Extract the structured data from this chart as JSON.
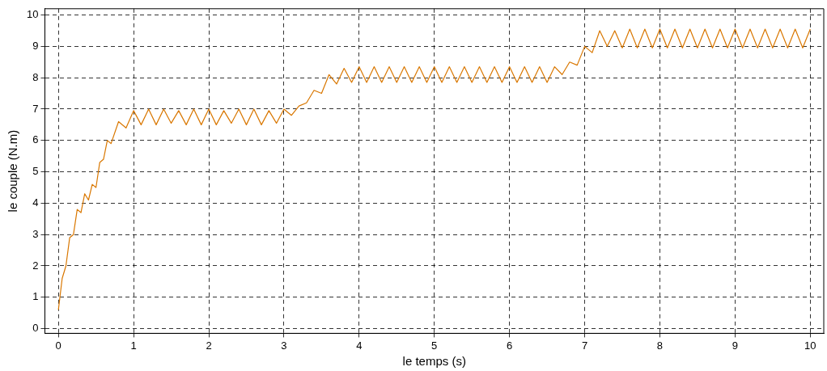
{
  "chart_data": {
    "type": "line",
    "xlabel": "le temps (s)",
    "ylabel": "le couple (N.m)",
    "xlim": [
      -0.18,
      10.18
    ],
    "ylim": [
      -0.15,
      10.2
    ],
    "xticks": [
      0,
      1,
      2,
      3,
      4,
      5,
      6,
      7,
      8,
      9,
      10
    ],
    "yticks": [
      0,
      1,
      2,
      3,
      4,
      5,
      6,
      7,
      8,
      9,
      10
    ],
    "grid": true,
    "line_style": "solid",
    "marker": "none",
    "series": [
      {
        "color": "#d97700",
        "x": [
          0,
          0.05,
          0.1,
          0.15,
          0.2,
          0.25,
          0.3,
          0.35,
          0.4,
          0.45,
          0.5,
          0.55,
          0.6,
          0.65,
          0.7,
          0.8,
          0.9,
          1.0,
          1.1,
          1.2,
          1.3,
          1.4,
          1.5,
          1.6,
          1.7,
          1.8,
          1.9,
          2.0,
          2.1,
          2.2,
          2.3,
          2.4,
          2.5,
          2.6,
          2.7,
          2.8,
          2.9,
          3.0,
          3.1,
          3.2,
          3.3,
          3.4,
          3.5,
          3.6,
          3.7,
          3.8,
          3.9,
          4.0,
          4.1,
          4.2,
          4.3,
          4.4,
          4.5,
          4.6,
          4.7,
          4.8,
          4.9,
          5.0,
          5.1,
          5.2,
          5.3,
          5.4,
          5.5,
          5.6,
          5.7,
          5.8,
          5.9,
          6.0,
          6.1,
          6.2,
          6.3,
          6.4,
          6.5,
          6.6,
          6.7,
          6.8,
          6.9,
          7.0,
          7.1,
          7.2,
          7.3,
          7.4,
          7.5,
          7.6,
          7.7,
          7.8,
          7.9,
          8.0,
          8.1,
          8.2,
          8.3,
          8.4,
          8.5,
          8.6,
          8.7,
          8.8,
          8.9,
          9.0,
          9.1,
          9.2,
          9.3,
          9.4,
          9.5,
          9.6,
          9.7,
          9.8,
          9.9,
          10.0
        ],
        "values": [
          0.6,
          1.6,
          2.0,
          2.9,
          3.0,
          3.8,
          3.7,
          4.3,
          4.1,
          4.6,
          4.5,
          5.3,
          5.4,
          6.0,
          5.9,
          6.6,
          6.4,
          6.95,
          6.5,
          7.0,
          6.5,
          7.0,
          6.55,
          6.95,
          6.5,
          7.0,
          6.5,
          7.0,
          6.5,
          6.95,
          6.55,
          7.0,
          6.5,
          7.0,
          6.5,
          6.95,
          6.55,
          7.0,
          6.8,
          7.1,
          7.2,
          7.6,
          7.5,
          8.1,
          7.8,
          8.3,
          7.85,
          8.35,
          7.85,
          8.35,
          7.85,
          8.35,
          7.85,
          8.35,
          7.85,
          8.35,
          7.85,
          8.35,
          7.85,
          8.35,
          7.85,
          8.35,
          7.85,
          8.35,
          7.85,
          8.35,
          7.85,
          8.35,
          7.85,
          8.35,
          7.85,
          8.35,
          7.85,
          8.35,
          8.1,
          8.5,
          8.4,
          9.0,
          8.8,
          9.5,
          9.0,
          9.5,
          8.95,
          9.55,
          8.95,
          9.55,
          8.95,
          9.55,
          8.95,
          9.55,
          8.95,
          9.55,
          8.95,
          9.55,
          8.95,
          9.55,
          8.95,
          9.55,
          8.95,
          9.55,
          8.95,
          9.55,
          8.95,
          9.55,
          8.95,
          9.55,
          8.95,
          9.55
        ]
      }
    ]
  }
}
